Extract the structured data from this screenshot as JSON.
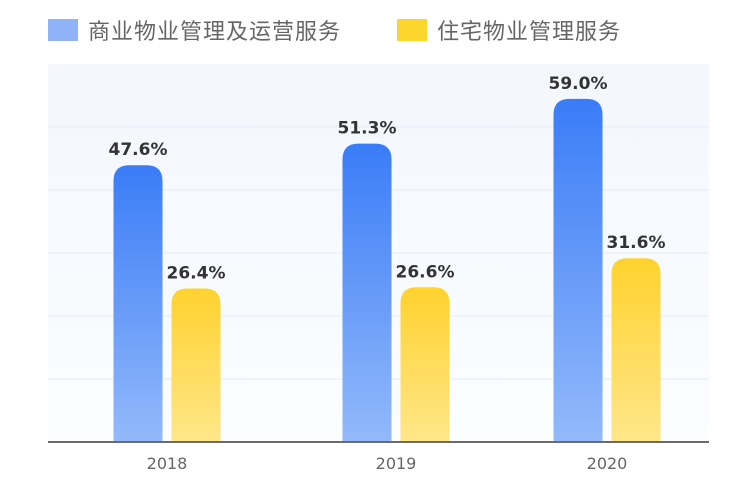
{
  "colors": {
    "series_1_top": "#3a7cf7",
    "series_1_bottom": "#93b9fa",
    "series_2_top": "#ffd22e",
    "series_2_bottom": "#ffe68a",
    "legend_1": "#8fb3f6",
    "legend_2": "#fbd72e",
    "background_top": "#f3f7fd",
    "background_bottom": "#fbfdff",
    "axis": "#6b6b6b",
    "grid": "#e3ecf8",
    "value_text": "#333333",
    "tick_text": "#666666"
  },
  "chart_data": {
    "type": "bar",
    "categories": [
      "2018",
      "2019",
      "2020"
    ],
    "series": [
      {
        "name": "商业物业管理及运营服务",
        "values": [
          47.6,
          51.3,
          59.0
        ],
        "labels": [
          "47.6%",
          "51.3%",
          "59.0%"
        ]
      },
      {
        "name": "住宅物业管理服务",
        "values": [
          26.4,
          26.6,
          31.6
        ],
        "labels": [
          "26.4%",
          "26.6%",
          "31.6%"
        ]
      }
    ],
    "title": "",
    "xlabel": "",
    "ylabel": "",
    "ylim": [
      0,
      65
    ],
    "grid": true,
    "legend_position": "top-left"
  }
}
